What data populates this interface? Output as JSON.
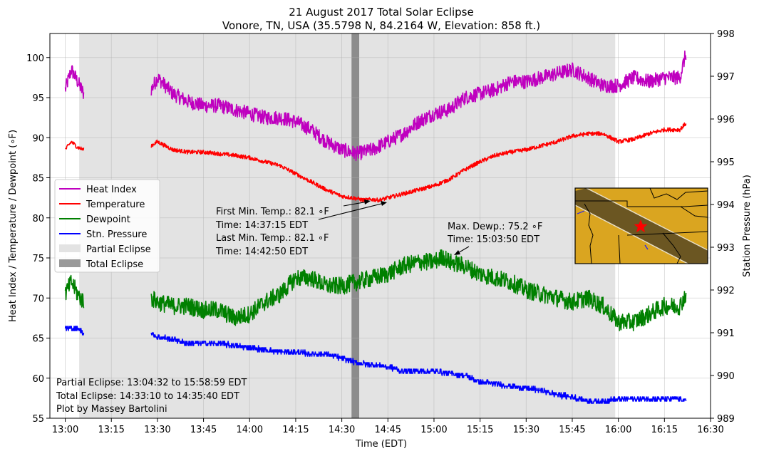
{
  "chart_data": {
    "type": "line",
    "title": "21 August 2017 Total Solar Eclipse",
    "subtitle": "Vonore, TN, USA (35.5798 N, 84.2164 W, Elevation: 858 ft.)",
    "xlabel": "Time (EDT)",
    "ylabel": "Heat Index / Temperature / Dewpoint (∘F)",
    "y2label": "Station Pressure (hPa)",
    "xlim": [
      "12:55",
      "16:30"
    ],
    "ylim": [
      55,
      103
    ],
    "y2lim": [
      989,
      998
    ],
    "x_ticks": [
      "13:00",
      "13:15",
      "13:30",
      "13:45",
      "14:00",
      "14:15",
      "14:30",
      "14:45",
      "15:00",
      "15:15",
      "15:30",
      "15:45",
      "16:00",
      "16:15",
      "16:30"
    ],
    "y_ticks": [
      "55",
      "60",
      "65",
      "70",
      "75",
      "80",
      "85",
      "90",
      "95",
      "100"
    ],
    "y2_ticks": [
      "989",
      "990",
      "991",
      "992",
      "993",
      "994",
      "995",
      "996",
      "997",
      "998"
    ],
    "grid": true,
    "legend_position": "center-left",
    "legend": [
      {
        "label": "Heat Index",
        "color": "#bf00bf",
        "kind": "line"
      },
      {
        "label": "Temperature",
        "color": "#ff0000",
        "kind": "line"
      },
      {
        "label": "Dewpoint",
        "color": "#008000",
        "kind": "line"
      },
      {
        "label": "Stn. Pressure",
        "color": "#0000ff",
        "kind": "line"
      },
      {
        "label": "Partial Eclipse",
        "color": "#e3e3e3",
        "kind": "patch"
      },
      {
        "label": "Total Eclipse",
        "color": "#999999",
        "kind": "patch"
      }
    ],
    "shaded_regions": [
      {
        "label": "Partial Eclipse",
        "start": "13:04:32",
        "end": "15:58:59",
        "color": "#e3e3e3"
      },
      {
        "label": "Total Eclipse",
        "start": "14:33:10",
        "end": "14:35:40",
        "color": "#8c8c8c"
      }
    ],
    "series": [
      {
        "name": "Heat Index",
        "axis": "left",
        "color": "#bf00bf",
        "noise": 0.9,
        "x": [
          "13:00",
          "13:02",
          "13:04",
          "13:06",
          "13:28",
          "13:30",
          "13:35",
          "13:40",
          "13:45",
          "13:50",
          "13:55",
          "14:00",
          "14:05",
          "14:10",
          "14:15",
          "14:20",
          "14:25",
          "14:30",
          "14:35",
          "14:40",
          "14:45",
          "14:50",
          "14:55",
          "15:00",
          "15:05",
          "15:10",
          "15:15",
          "15:20",
          "15:25",
          "15:30",
          "15:35",
          "15:40",
          "15:45",
          "15:50",
          "15:55",
          "16:00",
          "16:05",
          "16:10",
          "16:15",
          "16:20",
          "16:22"
        ],
        "y": [
          96.0,
          98.5,
          97.0,
          95.5,
          96.0,
          97.5,
          95.5,
          94.5,
          94.0,
          94.0,
          93.5,
          93.0,
          92.5,
          92.5,
          92.0,
          91.0,
          89.5,
          88.5,
          88.0,
          88.5,
          89.5,
          90.5,
          92.0,
          93.0,
          93.5,
          95.0,
          95.5,
          96.0,
          97.0,
          97.0,
          97.5,
          98.0,
          98.5,
          97.5,
          96.5,
          96.5,
          97.5,
          97.0,
          97.5,
          97.5,
          100.5
        ]
      },
      {
        "name": "Temperature",
        "axis": "left",
        "color": "#ff0000",
        "noise": 0.25,
        "x": [
          "13:00",
          "13:02",
          "13:04",
          "13:06",
          "13:28",
          "13:30",
          "13:35",
          "13:40",
          "13:45",
          "13:50",
          "13:55",
          "14:00",
          "14:05",
          "14:10",
          "14:15",
          "14:20",
          "14:25",
          "14:30",
          "14:35",
          "14:37",
          "14:40",
          "14:42",
          "14:45",
          "14:50",
          "14:55",
          "15:00",
          "15:05",
          "15:10",
          "15:15",
          "15:20",
          "15:25",
          "15:30",
          "15:35",
          "15:40",
          "15:45",
          "15:50",
          "15:55",
          "16:00",
          "16:05",
          "16:10",
          "16:15",
          "16:20",
          "16:22"
        ],
        "y": [
          88.5,
          89.5,
          88.8,
          88.5,
          89.0,
          89.5,
          88.5,
          88.2,
          88.2,
          88.0,
          87.8,
          87.5,
          87.0,
          86.5,
          85.5,
          84.5,
          83.5,
          82.7,
          82.4,
          82.2,
          82.3,
          82.2,
          82.5,
          83.0,
          83.5,
          84.0,
          84.8,
          86.0,
          87.0,
          87.8,
          88.2,
          88.5,
          89.0,
          89.5,
          90.2,
          90.5,
          90.5,
          89.5,
          89.8,
          90.5,
          91.0,
          91.0,
          91.8
        ]
      },
      {
        "name": "Dewpoint",
        "axis": "left",
        "color": "#008000",
        "noise": 1.1,
        "x": [
          "13:00",
          "13:02",
          "13:04",
          "13:06",
          "13:28",
          "13:30",
          "13:35",
          "13:40",
          "13:45",
          "13:50",
          "13:55",
          "14:00",
          "14:05",
          "14:10",
          "14:15",
          "14:20",
          "14:25",
          "14:30",
          "14:35",
          "14:40",
          "14:45",
          "14:50",
          "14:55",
          "15:00",
          "15:03",
          "15:05",
          "15:10",
          "15:15",
          "15:20",
          "15:25",
          "15:30",
          "15:35",
          "15:40",
          "15:45",
          "15:50",
          "15:55",
          "16:00",
          "16:05",
          "16:10",
          "16:15",
          "16:20",
          "16:22"
        ],
        "y": [
          70.5,
          72.0,
          70.5,
          69.5,
          70.0,
          69.5,
          69.0,
          69.0,
          68.5,
          68.5,
          67.5,
          68.0,
          69.5,
          70.5,
          72.5,
          72.5,
          71.5,
          71.5,
          72.0,
          72.5,
          73.0,
          74.0,
          74.5,
          74.5,
          75.2,
          74.5,
          74.0,
          73.0,
          72.5,
          72.0,
          71.0,
          70.5,
          70.0,
          69.5,
          70.0,
          69.0,
          67.0,
          67.0,
          68.0,
          69.0,
          69.0,
          70.5
        ]
      },
      {
        "name": "Stn. Pressure",
        "axis": "right",
        "color": "#0000ff",
        "noise": 0.06,
        "x": [
          "13:00",
          "13:02",
          "13:04",
          "13:06",
          "13:28",
          "13:30",
          "13:35",
          "13:40",
          "13:45",
          "13:50",
          "13:55",
          "14:00",
          "14:05",
          "14:10",
          "14:15",
          "14:20",
          "14:25",
          "14:30",
          "14:35",
          "14:40",
          "14:45",
          "14:50",
          "14:55",
          "15:00",
          "15:05",
          "15:10",
          "15:15",
          "15:20",
          "15:25",
          "15:30",
          "15:35",
          "15:40",
          "15:45",
          "15:50",
          "15:55",
          "16:00",
          "16:05",
          "16:10",
          "16:15",
          "16:20",
          "16:22"
        ],
        "y": [
          991.1,
          991.1,
          991.1,
          991.0,
          991.0,
          990.9,
          990.85,
          990.75,
          990.75,
          990.75,
          990.7,
          990.65,
          990.6,
          990.55,
          990.55,
          990.5,
          990.5,
          990.4,
          990.3,
          990.25,
          990.2,
          990.1,
          990.1,
          990.1,
          990.05,
          990.0,
          989.85,
          989.8,
          989.75,
          989.7,
          989.65,
          989.55,
          989.5,
          989.4,
          989.4,
          989.45,
          989.45,
          989.45,
          989.45,
          989.45,
          989.4
        ]
      }
    ],
    "annotations": [
      {
        "id": "min_temp",
        "lines": [
          "First Min. Temp.: 82.1 ∘F",
          "Time: 14:37:15 EDT",
          "Last Min. Temp.: 82.1 ∘F",
          "Time: 14:42:50 EDT"
        ]
      },
      {
        "id": "max_dewp",
        "lines": [
          "Max. Dewp.: 75.2 ∘F",
          "Time: 15:03:50 EDT"
        ]
      }
    ],
    "footnote": [
      "Partial Eclipse: 13:04:32 to 15:58:59 EDT",
      "Total Eclipse: 14:33:10 to 14:35:40 EDT",
      "Plot by Massey Bartolini"
    ],
    "inset_map": {
      "land_color": "#daa520",
      "path_color": "#6b5622",
      "marker_color": "#ff0000"
    }
  }
}
